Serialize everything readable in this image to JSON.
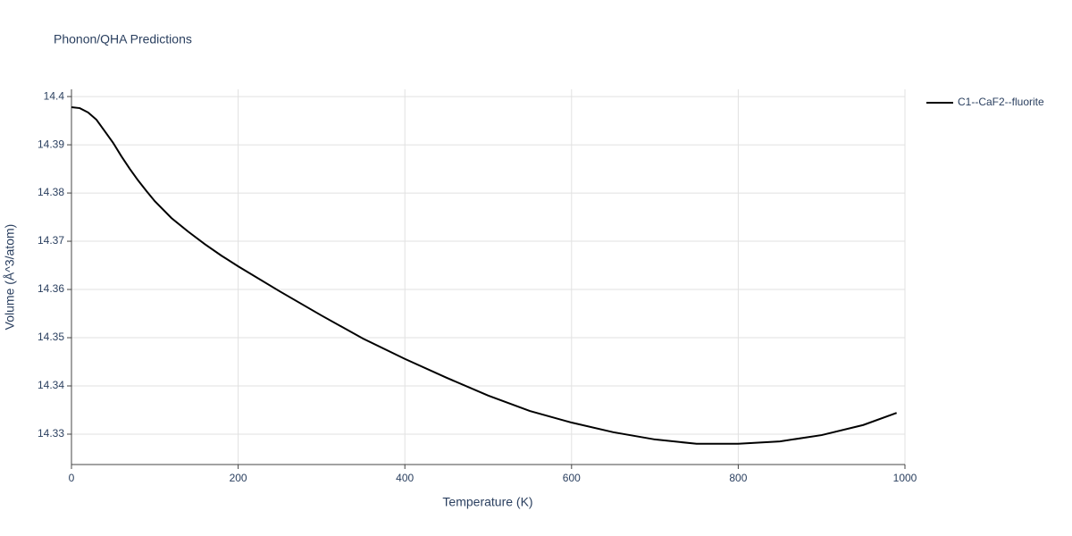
{
  "chart_data": {
    "type": "line",
    "title": "Phonon/QHA Predictions",
    "x_label": "Temperature (K)",
    "y_label": "Volume (Å^3/atom)",
    "x": [
      0,
      10,
      20,
      30,
      40,
      50,
      60,
      70,
      80,
      90,
      100,
      120,
      140,
      160,
      180,
      200,
      250,
      300,
      350,
      400,
      450,
      500,
      550,
      600,
      650,
      700,
      750,
      800,
      850,
      900,
      950,
      990
    ],
    "series": [
      {
        "name": "C1--CaF2--fluorite",
        "color": "#000000",
        "values": [
          14.3978,
          14.3976,
          14.3967,
          14.3952,
          14.3928,
          14.3904,
          14.3876,
          14.385,
          14.3826,
          14.3804,
          14.3783,
          14.3748,
          14.372,
          14.3694,
          14.367,
          14.3648,
          14.3596,
          14.3546,
          14.3498,
          14.3456,
          14.3417,
          14.338,
          14.3348,
          14.3324,
          14.3304,
          14.3289,
          14.328,
          14.328,
          14.3285,
          14.3298,
          14.3319,
          14.3344
        ]
      }
    ],
    "xlim": [
      0,
      1000
    ],
    "xticks": [
      0,
      200,
      400,
      600,
      800,
      1000
    ],
    "ylim": [
      14.3237,
      14.4015
    ],
    "yticks": [
      14.33,
      14.34,
      14.35,
      14.36,
      14.37,
      14.38,
      14.39,
      14.4
    ],
    "grid": true,
    "legend": "top-right"
  }
}
